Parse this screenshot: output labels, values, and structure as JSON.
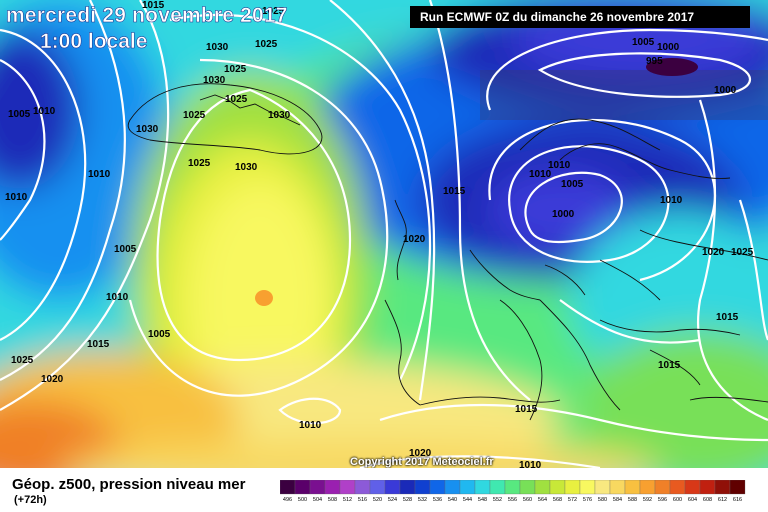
{
  "header": {
    "date_title": "mercredi 29 novembre 2017",
    "time_title": "1:00 locale",
    "run_label": "Run ECMWF 0Z du dimanche 26 novembre 2017"
  },
  "footer": {
    "product_label": "Géop. z500, pression niveau mer",
    "lead_time": "(+72h)",
    "copyright": "Copyright 2017 Meteociel.fr"
  },
  "legend": {
    "ticks": [
      "496",
      "500",
      "504",
      "508",
      "512",
      "516",
      "520",
      "524",
      "528",
      "532",
      "536",
      "540",
      "544",
      "548",
      "552",
      "556",
      "560",
      "564",
      "568",
      "572",
      "576",
      "580",
      "584",
      "588",
      "592",
      "596",
      "600",
      "604",
      "608",
      "612",
      "616"
    ],
    "colors": [
      "#3b0040",
      "#5a006a",
      "#7a1090",
      "#9a20b0",
      "#b040c8",
      "#8c5ad8",
      "#6060e8",
      "#3a3ad8",
      "#1a2ab8",
      "#1040d0",
      "#1066e8",
      "#1890f0",
      "#20b8f0",
      "#30d8e0",
      "#40e8b0",
      "#58e880",
      "#78e058",
      "#a0e040",
      "#c8e838",
      "#e8f040",
      "#f8f860",
      "#f8e880",
      "#f8d860",
      "#f8c040",
      "#f8a030",
      "#f08028",
      "#e85a20",
      "#d83818",
      "#c02010",
      "#901008",
      "#600000"
    ]
  },
  "pressure_labels": [
    "1025",
    "1015",
    "1030",
    "1025",
    "1030",
    "1025",
    "1025",
    "1030",
    "1005",
    "1010",
    "1030",
    "1025",
    "1030",
    "1010",
    "1010",
    "1005",
    "1010",
    "1005",
    "1015",
    "1025",
    "1020",
    "1025",
    "1015",
    "1010",
    "1015",
    "1020",
    "1010",
    "1005",
    "1000",
    "995",
    "1000",
    "1005",
    "1010",
    "1010",
    "1005",
    "1000",
    "1010",
    "1020",
    "1025",
    "1015",
    "1015",
    "1020",
    "1020"
  ]
}
